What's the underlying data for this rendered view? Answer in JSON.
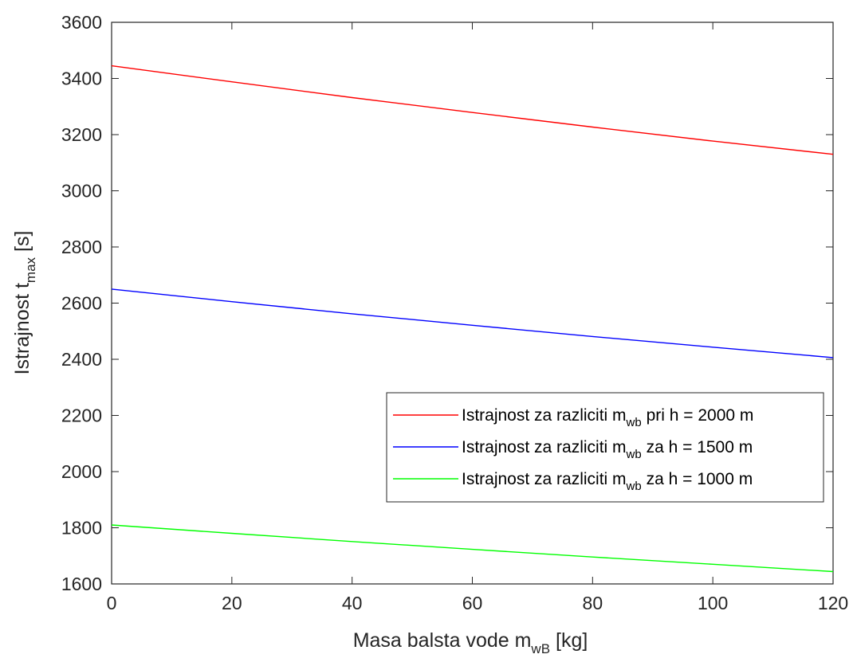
{
  "chart_data": {
    "type": "line",
    "xlabel": {
      "main": "Masa balsta vode m",
      "sub": "wB",
      "unit": " [kg]"
    },
    "ylabel": {
      "main": "Istrajnost t",
      "sub": "max",
      "unit": " [s]"
    },
    "xlim": [
      0,
      120
    ],
    "ylim": [
      1600,
      3600
    ],
    "xticks": [
      0,
      20,
      40,
      60,
      80,
      100,
      120
    ],
    "yticks": [
      1600,
      1800,
      2000,
      2200,
      2400,
      2600,
      2800,
      3000,
      3200,
      3400,
      3600
    ],
    "grid": false,
    "legend_position": "right-middle",
    "series": [
      {
        "name": "Istrajnost za razliciti m_wb pri h = 2000 m",
        "legend": {
          "prefix": "Istrajnost za razliciti m",
          "sub": "wb",
          "suffix": " pri h = 2000 m"
        },
        "color": "#ff0000",
        "x": [
          0,
          20,
          40,
          60,
          80,
          100,
          120
        ],
        "y": [
          3445,
          3388,
          3332,
          3279,
          3227,
          3177,
          3130
        ]
      },
      {
        "name": "Istrajnost za razliciti m_wb za h = 1500 m",
        "legend": {
          "prefix": "Istrajnost za razliciti m",
          "sub": "wb",
          "suffix": " za h = 1500 m"
        },
        "color": "#0000ff",
        "x": [
          0,
          20,
          40,
          60,
          80,
          100,
          120
        ],
        "y": [
          2650,
          2605,
          2562,
          2521,
          2481,
          2443,
          2406
        ]
      },
      {
        "name": "Istrajnost za razliciti m_wb za h = 1000 m",
        "legend": {
          "prefix": "Istrajnost za razliciti m",
          "sub": "wb",
          "suffix": " za h = 1000 m"
        },
        "color": "#00ff00",
        "x": [
          0,
          20,
          40,
          60,
          80,
          100,
          120
        ],
        "y": [
          1810,
          1780,
          1751,
          1723,
          1696,
          1670,
          1644
        ]
      }
    ]
  }
}
